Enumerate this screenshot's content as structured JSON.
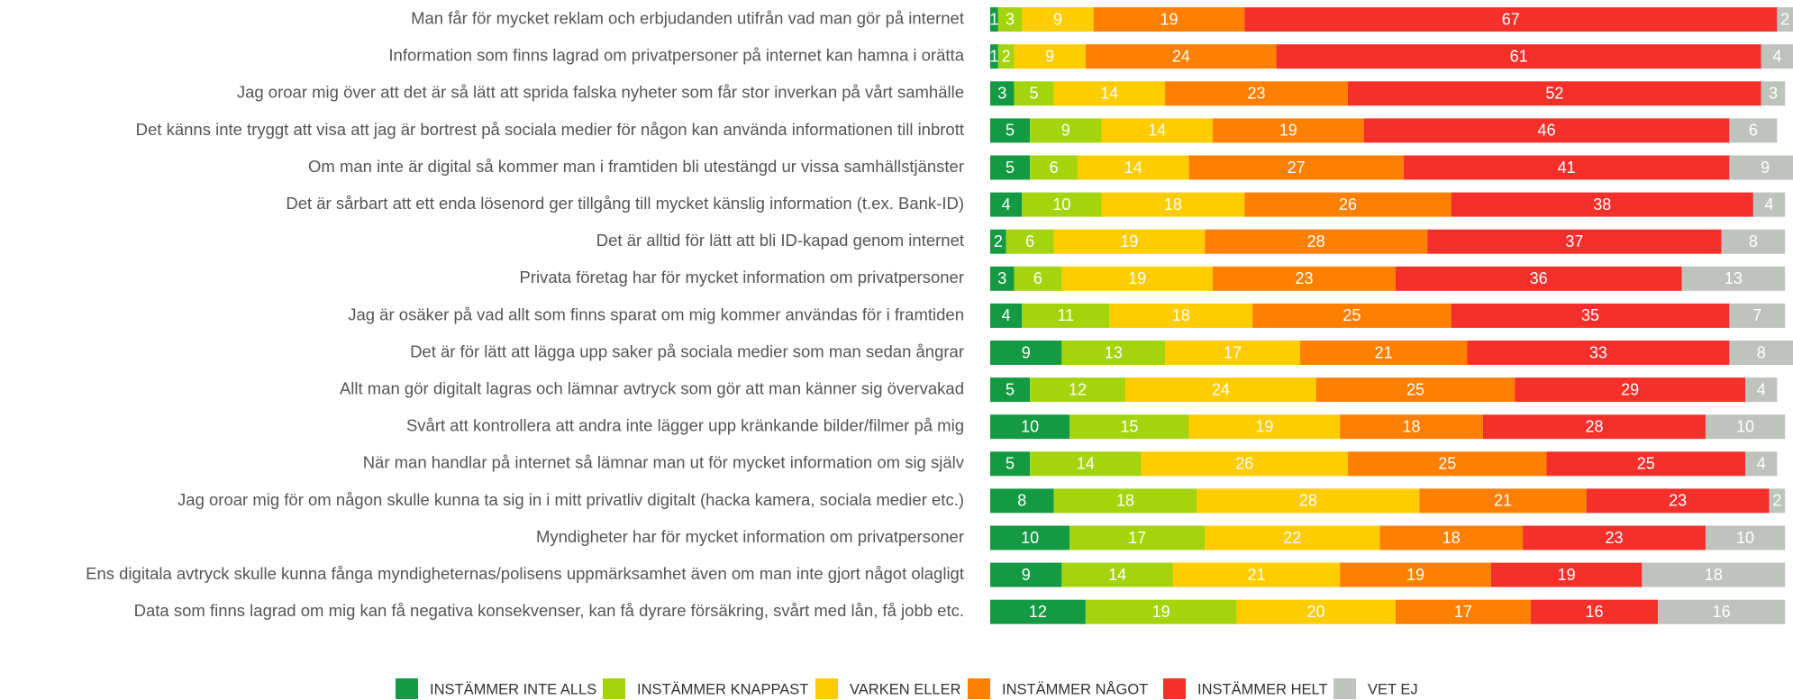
{
  "chart_data": {
    "type": "stacked-barh",
    "categories": [
      "Man får för mycket reklam och erbjudanden utifrån vad man gör på internet",
      "Information som finns lagrad om privatpersoner på internet kan hamna i orätta",
      "Jag oroar mig över att det är så lätt att sprida falska nyheter som får stor inverkan på vårt samhälle",
      "Det känns inte tryggt att visa att jag är bortrest på sociala medier för någon kan använda informationen till inbrott",
      "Om man inte är digital så kommer man i framtiden bli utestängd ur vissa samhällstjänster",
      "Det är sårbart att ett enda lösenord ger tillgång till mycket känslig information (t.ex. Bank-ID)",
      "Det är alltid för lätt att bli ID-kapad genom internet",
      "Privata företag har för mycket information om privatpersoner",
      "Jag är osäker på vad allt som finns sparat om mig kommer användas för i framtiden",
      "Det är för lätt att lägga upp saker på sociala medier som man sedan ångrar",
      "Allt man gör digitalt lagras och lämnar avtryck som gör att man känner sig övervakad",
      "Svårt att kontrollera att andra inte lägger upp kränkande bilder/filmer på mig",
      "När man handlar på internet så lämnar man ut för mycket information om sig själv",
      "Jag oroar mig för om någon skulle kunna ta sig in i mitt privatliv digitalt (hacka kamera, sociala medier etc.)",
      "Myndigheter har för mycket information om privatpersoner",
      "Ens digitala avtryck skulle kunna fånga myndigheternas/polisens uppmärksamhet även om man inte gjort något olagligt",
      "Data som finns lagrad om mig kan få negativa konsekvenser, kan få dyrare försäkring, svårt med lån, få jobb etc."
    ],
    "series": [
      {
        "name": "INSTÄMMER INTE ALLS",
        "color": "#139a43",
        "values": [
          1,
          1,
          3,
          5,
          5,
          4,
          2,
          3,
          4,
          9,
          5,
          10,
          5,
          8,
          10,
          9,
          12
        ]
      },
      {
        "name": "INSTÄMMER KNAPPAST",
        "color": "#a4d40c",
        "values": [
          3,
          2,
          5,
          9,
          6,
          10,
          6,
          6,
          11,
          13,
          12,
          15,
          14,
          18,
          17,
          14,
          19
        ]
      },
      {
        "name": "VARKEN ELLER",
        "color": "#ffcc00",
        "values": [
          9,
          9,
          14,
          14,
          14,
          18,
          19,
          19,
          18,
          17,
          24,
          19,
          26,
          28,
          22,
          21,
          20
        ]
      },
      {
        "name": "INSTÄMMER NÅGOT",
        "color": "#ff7f00",
        "values": [
          19,
          24,
          23,
          19,
          27,
          26,
          28,
          23,
          25,
          21,
          25,
          18,
          25,
          21,
          18,
          19,
          17
        ]
      },
      {
        "name": "INSTÄMMER HELT",
        "color": "#f5302a",
        "values": [
          67,
          61,
          52,
          46,
          41,
          38,
          37,
          36,
          35,
          33,
          29,
          28,
          25,
          23,
          23,
          19,
          16
        ]
      },
      {
        "name": "VET EJ",
        "color": "#bfc3bd",
        "values": [
          2,
          4,
          3,
          6,
          9,
          4,
          8,
          13,
          7,
          8,
          4,
          10,
          4,
          2,
          10,
          18,
          16
        ]
      }
    ],
    "xlim": [
      0,
      101
    ]
  }
}
